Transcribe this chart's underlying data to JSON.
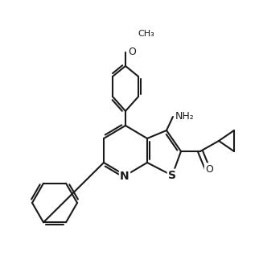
{
  "bg_color": "#ffffff",
  "line_color": "#1a1a1a",
  "line_width": 1.5,
  "font_size": 9,
  "bold_atoms": [
    "N",
    "S",
    "O"
  ],
  "atoms": {
    "N_label": "N",
    "S_label": "S",
    "O_carbonyl": "O",
    "NH2_label": "NH₂",
    "OMe_label": "O",
    "Me_label": "OCH₃"
  }
}
